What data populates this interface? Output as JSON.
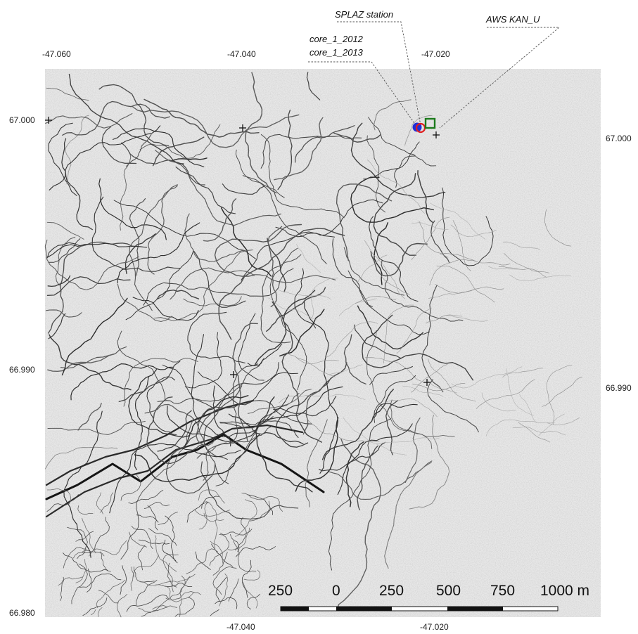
{
  "map": {
    "top_axis": [
      "-47.060",
      "-47.040",
      "-47.020"
    ],
    "bottom_axis": [
      "-47.040",
      "-47.020"
    ],
    "left_axis": [
      "67.000",
      "66.990",
      "66.980"
    ],
    "right_axis": [
      "67.000",
      "66.990"
    ],
    "labels": {
      "splaz": "SPLAZ station",
      "aws": "AWS KAN_U",
      "core_2012": "core_1_2012",
      "core_2013": "core_1_2013"
    },
    "scale_bar": {
      "labels": [
        "250",
        "0",
        "250",
        "500",
        "750",
        "1000 m"
      ]
    },
    "colors": {
      "core_2012": "#1f2fd8",
      "core_2013": "#e01f1f",
      "aws": "#1c7a1c"
    }
  }
}
